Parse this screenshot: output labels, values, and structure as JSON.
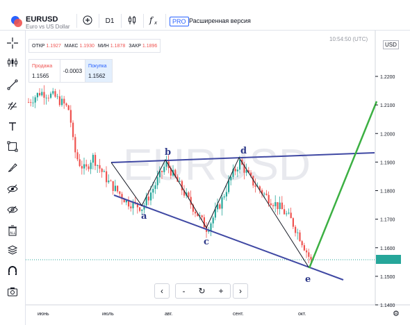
{
  "header": {
    "symbol": "EURUSD",
    "description": "Euro vs US Dollar",
    "timeframe": "D1",
    "pro_badge": "PRO",
    "pro_text": "Расширенная версия",
    "icons": [
      "plus-circle-icon",
      "candles-icon",
      "fx-icon"
    ]
  },
  "ohlc": {
    "open_label": "ОТКР",
    "open": "1.1927",
    "high_label": "МАКС",
    "high": "1.1930",
    "low_label": "МИН",
    "low": "1.1878",
    "close_label": "ЗАКР",
    "close": "1.1896"
  },
  "clock": "10:54:50 (UTC)",
  "currency": "USD",
  "trade": {
    "sell_label": "Продажа",
    "sell_price": "1.1565",
    "spread": "-0.0003",
    "buy_label": "Покупка",
    "buy_price": "1.1562"
  },
  "watermark": "EURUSD",
  "y_axis": [
    "1.2200",
    "1.2100",
    "1.2000",
    "1.1900",
    "1.1800",
    "1.1700",
    "1.1600",
    "1.1500",
    "1.1400"
  ],
  "x_axis": [
    "июнь",
    "июль",
    "авг.",
    "сент.",
    "окт."
  ],
  "pattern_labels": [
    "a",
    "b",
    "c",
    "d",
    "e"
  ],
  "colors": {
    "up": "#26a69a",
    "down": "#ef5350",
    "trendline": "#3f48a3",
    "forecast": "#3cb043",
    "current_price": "#26a69a"
  },
  "nav": {
    "left": "‹",
    "minus": "-",
    "reset": "↻",
    "plus": "+",
    "right": "›"
  },
  "left_tools": [
    "crosshair-icon",
    "indicators-icon",
    "trendline-icon",
    "fib-icon",
    "text-icon",
    "measure-icon",
    "brush-icon",
    "eye-icon",
    "magnet-icon",
    "delete-all-icon",
    "layers-icon",
    "lock-icon",
    "screenshot-icon"
  ]
}
